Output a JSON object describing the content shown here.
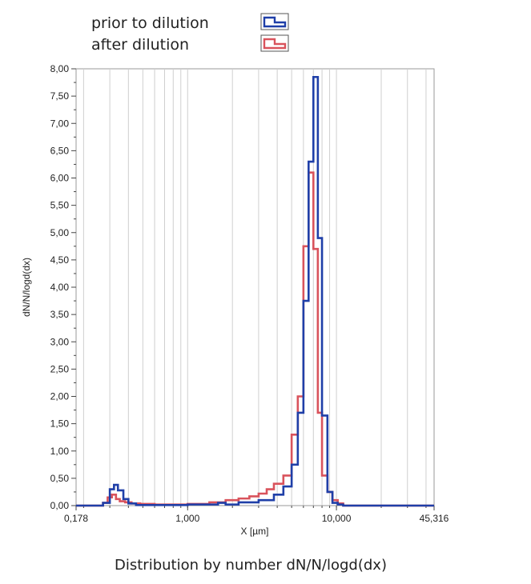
{
  "chart_data": {
    "type": "line",
    "subtype": "step-histogram",
    "caption": "Distribution by number  dN/N/logd(dx)",
    "xlabel": "X [µm]",
    "ylabel": "dN/N/logd(dx)",
    "xscale": "log",
    "xlim": [
      0.178,
      45.316
    ],
    "ylim": [
      0,
      8
    ],
    "x_tick_labels": [
      "0,178",
      "1,000",
      "10,000",
      "45,316"
    ],
    "x_tick_values": [
      0.178,
      1.0,
      10.0,
      45.316
    ],
    "y_ticks": [
      0,
      0.5,
      1,
      1.5,
      2,
      2.5,
      3,
      3.5,
      4,
      4.5,
      5,
      5.5,
      6,
      6.5,
      7,
      7.5,
      8
    ],
    "y_tick_labels": [
      "0,00",
      "0,50",
      "1,00",
      "1,50",
      "2,00",
      "2,50",
      "3,00",
      "3,50",
      "4,00",
      "4,50",
      "5,00",
      "5,50",
      "6,00",
      "6,50",
      "7,00",
      "7,50",
      "8,00"
    ],
    "grid": "vertical-log",
    "legend_position": "top",
    "series": [
      {
        "name": "prior to dilution",
        "color": "#1f3fa8",
        "edges": [
          0.178,
          0.27,
          0.3,
          0.32,
          0.34,
          0.37,
          0.4,
          0.45,
          1.0,
          1.6,
          1.8,
          2.2,
          3.0,
          3.8,
          4.4,
          5.0,
          5.5,
          6.0,
          6.5,
          7.0,
          7.5,
          8.0,
          8.7,
          9.4,
          10.2,
          11.1,
          45.316
        ],
        "values": [
          0,
          0.05,
          0.3,
          0.38,
          0.28,
          0.12,
          0.04,
          0.01,
          0.02,
          0.05,
          0.02,
          0.06,
          0.1,
          0.2,
          0.35,
          0.75,
          1.7,
          3.75,
          6.3,
          7.85,
          4.9,
          1.65,
          0.25,
          0.05,
          0.02,
          0
        ]
      },
      {
        "name": "after dilution",
        "color": "#d9535c",
        "edges": [
          0.178,
          0.27,
          0.29,
          0.31,
          0.33,
          0.35,
          0.38,
          0.42,
          0.48,
          0.6,
          1.0,
          1.4,
          1.8,
          2.2,
          2.6,
          3.0,
          3.4,
          3.8,
          4.4,
          5.0,
          5.5,
          6.0,
          6.5,
          7.0,
          7.5,
          8.0,
          8.7,
          9.4,
          10.2,
          11.1,
          45.316
        ],
        "values": [
          0,
          0.05,
          0.15,
          0.2,
          0.12,
          0.08,
          0.06,
          0.04,
          0.03,
          0.02,
          0.03,
          0.06,
          0.1,
          0.13,
          0.17,
          0.22,
          0.3,
          0.4,
          0.55,
          1.3,
          2.0,
          4.75,
          6.1,
          4.7,
          1.7,
          0.55,
          0.25,
          0.1,
          0.04,
          0
        ]
      }
    ]
  }
}
